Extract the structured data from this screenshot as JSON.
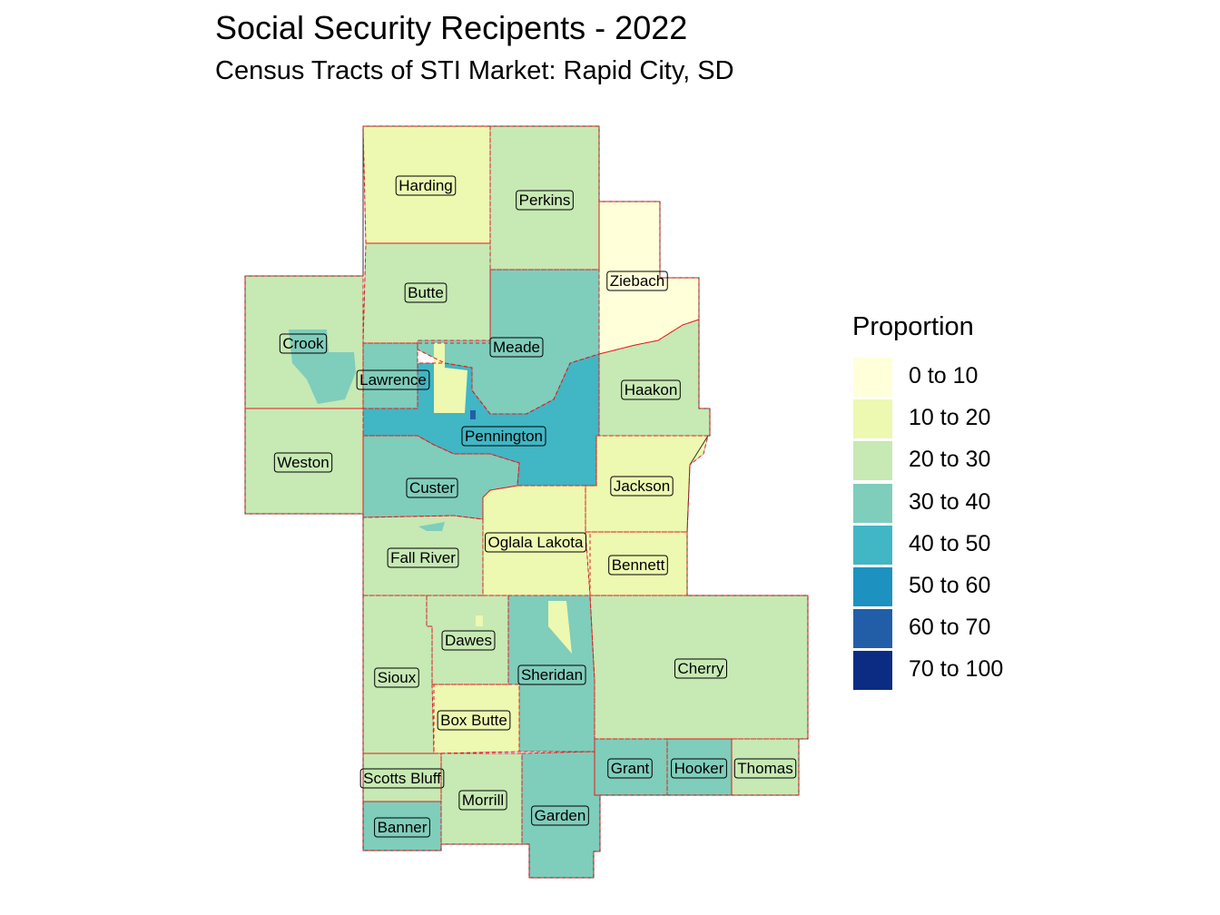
{
  "title": "Social Security Recipents - 2022",
  "subtitle": "Census Tracts of STI Market: Rapid City, SD",
  "legend": {
    "title": "Proportion",
    "items": [
      {
        "label": "0 to 10",
        "color": "#ffffd9"
      },
      {
        "label": "10 to 20",
        "color": "#edf8b1"
      },
      {
        "label": "20 to 30",
        "color": "#c7e9b4"
      },
      {
        "label": "30 to 40",
        "color": "#7fcdbb"
      },
      {
        "label": "40 to 50",
        "color": "#41b6c4"
      },
      {
        "label": "50 to 60",
        "color": "#1d91c0"
      },
      {
        "label": "60 to 70",
        "color": "#225ea8"
      },
      {
        "label": "70 to 100",
        "color": "#0c2c84"
      }
    ]
  },
  "counties": [
    {
      "name": "Harding",
      "bin": 1
    },
    {
      "name": "Perkins",
      "bin": 2
    },
    {
      "name": "Ziebach",
      "bin": 0
    },
    {
      "name": "Butte",
      "bin": 2
    },
    {
      "name": "Crook",
      "bin": 2
    },
    {
      "name": "Meade",
      "bin": 3
    },
    {
      "name": "Lawrence",
      "bin": 3
    },
    {
      "name": "Haakon",
      "bin": 2
    },
    {
      "name": "Pennington",
      "bin": 4
    },
    {
      "name": "Weston",
      "bin": 2
    },
    {
      "name": "Custer",
      "bin": 3
    },
    {
      "name": "Jackson",
      "bin": 1
    },
    {
      "name": "Oglala Lakota",
      "bin": 1
    },
    {
      "name": "Fall River",
      "bin": 2
    },
    {
      "name": "Bennett",
      "bin": 1
    },
    {
      "name": "Dawes",
      "bin": 2
    },
    {
      "name": "Sheridan",
      "bin": 3
    },
    {
      "name": "Cherry",
      "bin": 2
    },
    {
      "name": "Sioux",
      "bin": 2
    },
    {
      "name": "Box Butte",
      "bin": 1
    },
    {
      "name": "Scotts Bluff",
      "bin": 2
    },
    {
      "name": "Morrill",
      "bin": 2
    },
    {
      "name": "Grant",
      "bin": 3
    },
    {
      "name": "Hooker",
      "bin": 3
    },
    {
      "name": "Thomas",
      "bin": 2
    },
    {
      "name": "Banner",
      "bin": 3
    },
    {
      "name": "Garden",
      "bin": 3
    }
  ]
}
